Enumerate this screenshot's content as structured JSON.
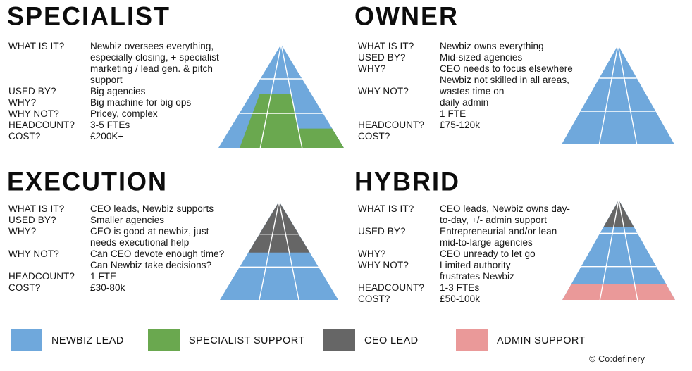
{
  "brand": {
    "copyright": "© Co:definery"
  },
  "colors": {
    "newbiz_lead": "#6fa8dc",
    "specialist_support": "#6aa84f",
    "ceo_lead": "#666666",
    "admin_support": "#ea9999",
    "grid_line": "#ffffff"
  },
  "legend": [
    {
      "color": "newbiz_lead",
      "label": "NEWBIZ LEAD"
    },
    {
      "color": "specialist_support",
      "label": "SPECIALIST SUPPORT"
    },
    {
      "color": "ceo_lead",
      "label": "CEO LEAD"
    },
    {
      "color": "admin_support",
      "label": "ADMIN SUPPORT"
    }
  ],
  "quadrants": [
    {
      "id": "specialist",
      "title": "SPECIALIST",
      "rows": [
        {
          "label": "WHAT IS IT?",
          "value": "Newbiz oversees everything,"
        },
        {
          "label": "",
          "value": "especially closing, + specialist"
        },
        {
          "label": "",
          "value": "marketing / lead gen. & pitch"
        },
        {
          "label": "",
          "value": "support"
        },
        {
          "label": "USED BY?",
          "value": "Big agencies"
        },
        {
          "label": "WHY?",
          "value": "Big machine for big ops"
        },
        {
          "label": "WHY NOT?",
          "value": "Pricey, complex"
        },
        {
          "label": "HEADCOUNT?",
          "value": "3-5 FTEs"
        },
        {
          "label": "COST?",
          "value": "£200K+"
        }
      ],
      "pyramid": {
        "base": "newbiz_lead",
        "h_lines": [
          0.3333,
          0.6667
        ],
        "base_splits": [
          0.3333,
          0.6667
        ],
        "overlays": [
          {
            "color": "specialist_support",
            "points": [
              [
                0.33,
                0.476
              ],
              [
                0.579,
                0.476
              ],
              [
                0.636,
                0.814
              ],
              [
                0.907,
                0.814
              ],
              [
                1,
                1
              ],
              [
                0.169,
                1
              ]
            ]
          }
        ]
      }
    },
    {
      "id": "owner",
      "title": "OWNER",
      "rows": [
        {
          "label": "WHAT IS IT?",
          "value": "Newbiz owns everything"
        },
        {
          "label": "USED BY?",
          "value": "Mid-sized agencies"
        },
        {
          "label": "WHY?",
          "value": "CEO needs to focus elsewhere"
        },
        {
          "label": "",
          "value": "Newbiz not skilled in all areas,"
        },
        {
          "label": "WHY NOT?",
          "value": "wastes time on"
        },
        {
          "label": "",
          "value": "daily admin"
        },
        {
          "label": "",
          "value": "1 FTE"
        },
        {
          "label": "HEADCOUNT?",
          "value": "£75-120k"
        },
        {
          "label": "COST?",
          "value": ""
        }
      ],
      "pyramid": {
        "base": "newbiz_lead",
        "h_lines": [
          0.3333,
          0.6667
        ],
        "base_splits": [
          0.3333,
          0.6667
        ],
        "overlays": []
      }
    },
    {
      "id": "execution",
      "title": "EXECUTION",
      "rows": [
        {
          "label": "WHAT IS IT?",
          "value": "CEO leads, Newbiz supports"
        },
        {
          "label": "USED BY?",
          "value": "Smaller agencies"
        },
        {
          "label": "WHY?",
          "value": "CEO is good at newbiz, just"
        },
        {
          "label": "",
          "value": "needs executional help"
        },
        {
          "label": "WHY NOT?",
          "value": "Can CEO devote enough time?"
        },
        {
          "label": "",
          "value": "Can Newbiz take decisions?"
        },
        {
          "label": "HEADCOUNT?",
          "value": "1 FTE"
        },
        {
          "label": "COST?",
          "value": "£30-80k"
        }
      ],
      "pyramid": {
        "base": "newbiz_lead",
        "h_lines": [
          0.3333,
          0.6667
        ],
        "base_splits": [
          0.3333,
          0.6667
        ],
        "overlays": [
          {
            "color": "ceo_lead",
            "points": [
              [
                0.5,
                0
              ],
              [
                0.76,
                0.52
              ],
              [
                0.24,
                0.52
              ]
            ]
          }
        ]
      }
    },
    {
      "id": "hybrid",
      "title": "HYBRID",
      "rows": [
        {
          "label": "WHAT IS IT?",
          "value": "CEO leads, Newbiz owns day-"
        },
        {
          "label": "",
          "value": "to-day, +/- admin support"
        },
        {
          "label": "USED BY?",
          "value": "Entrepreneurial and/or lean"
        },
        {
          "label": "",
          "value": "mid-to-large agencies"
        },
        {
          "label": "WHY?",
          "value": "CEO unready to let go"
        },
        {
          "label": "WHY NOT?",
          "value": "Limited authority"
        },
        {
          "label": "",
          "value": "frustrates Newbiz"
        },
        {
          "label": "HEADCOUNT?",
          "value": "1-3 FTEs"
        },
        {
          "label": "COST?",
          "value": "£50-100k"
        }
      ],
      "pyramid": {
        "base": "newbiz_lead",
        "h_lines": [
          0.3333,
          0.6667
        ],
        "base_splits": [
          0.3333,
          0.6667
        ],
        "overlays": [
          {
            "color": "ceo_lead",
            "points": [
              [
                0.5,
                0
              ],
              [
                0.635,
                0.27
              ],
              [
                0.365,
                0.27
              ]
            ]
          },
          {
            "color": "admin_support",
            "points": [
              [
                0.08,
                0.84
              ],
              [
                0.92,
                0.84
              ],
              [
                1,
                1
              ],
              [
                0,
                1
              ]
            ]
          }
        ]
      }
    }
  ]
}
